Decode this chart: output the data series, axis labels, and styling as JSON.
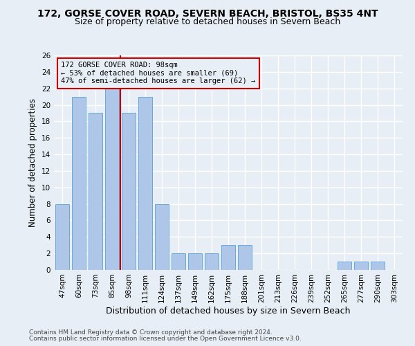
{
  "title1": "172, GORSE COVER ROAD, SEVERN BEACH, BRISTOL, BS35 4NT",
  "title2": "Size of property relative to detached houses in Severn Beach",
  "xlabel": "Distribution of detached houses by size in Severn Beach",
  "ylabel": "Number of detached properties",
  "footnote1": "Contains HM Land Registry data © Crown copyright and database right 2024.",
  "footnote2": "Contains public sector information licensed under the Open Government Licence v3.0.",
  "categories": [
    "47sqm",
    "60sqm",
    "73sqm",
    "85sqm",
    "98sqm",
    "111sqm",
    "124sqm",
    "137sqm",
    "149sqm",
    "162sqm",
    "175sqm",
    "188sqm",
    "201sqm",
    "213sqm",
    "226sqm",
    "239sqm",
    "252sqm",
    "265sqm",
    "277sqm",
    "290sqm",
    "303sqm"
  ],
  "values": [
    8,
    21,
    19,
    22,
    19,
    21,
    8,
    2,
    2,
    2,
    3,
    3,
    0,
    0,
    0,
    0,
    0,
    1,
    1,
    1,
    0
  ],
  "bar_color": "#aec6e8",
  "bar_edgecolor": "#5a9fd4",
  "reference_line_x": 3.5,
  "reference_line_color": "#cc0000",
  "annotation_text": "172 GORSE COVER ROAD: 98sqm\n← 53% of detached houses are smaller (69)\n47% of semi-detached houses are larger (62) →",
  "ylim": [
    0,
    26
  ],
  "yticks": [
    0,
    2,
    4,
    6,
    8,
    10,
    12,
    14,
    16,
    18,
    20,
    22,
    24,
    26
  ],
  "bg_color": "#e8eef5",
  "plot_bg_color": "#e8eef5",
  "grid_color": "#ffffff",
  "title_fontsize": 10,
  "subtitle_fontsize": 9,
  "tick_fontsize": 7.5,
  "ylabel_fontsize": 8.5,
  "xlabel_fontsize": 9,
  "footnote_fontsize": 6.5
}
